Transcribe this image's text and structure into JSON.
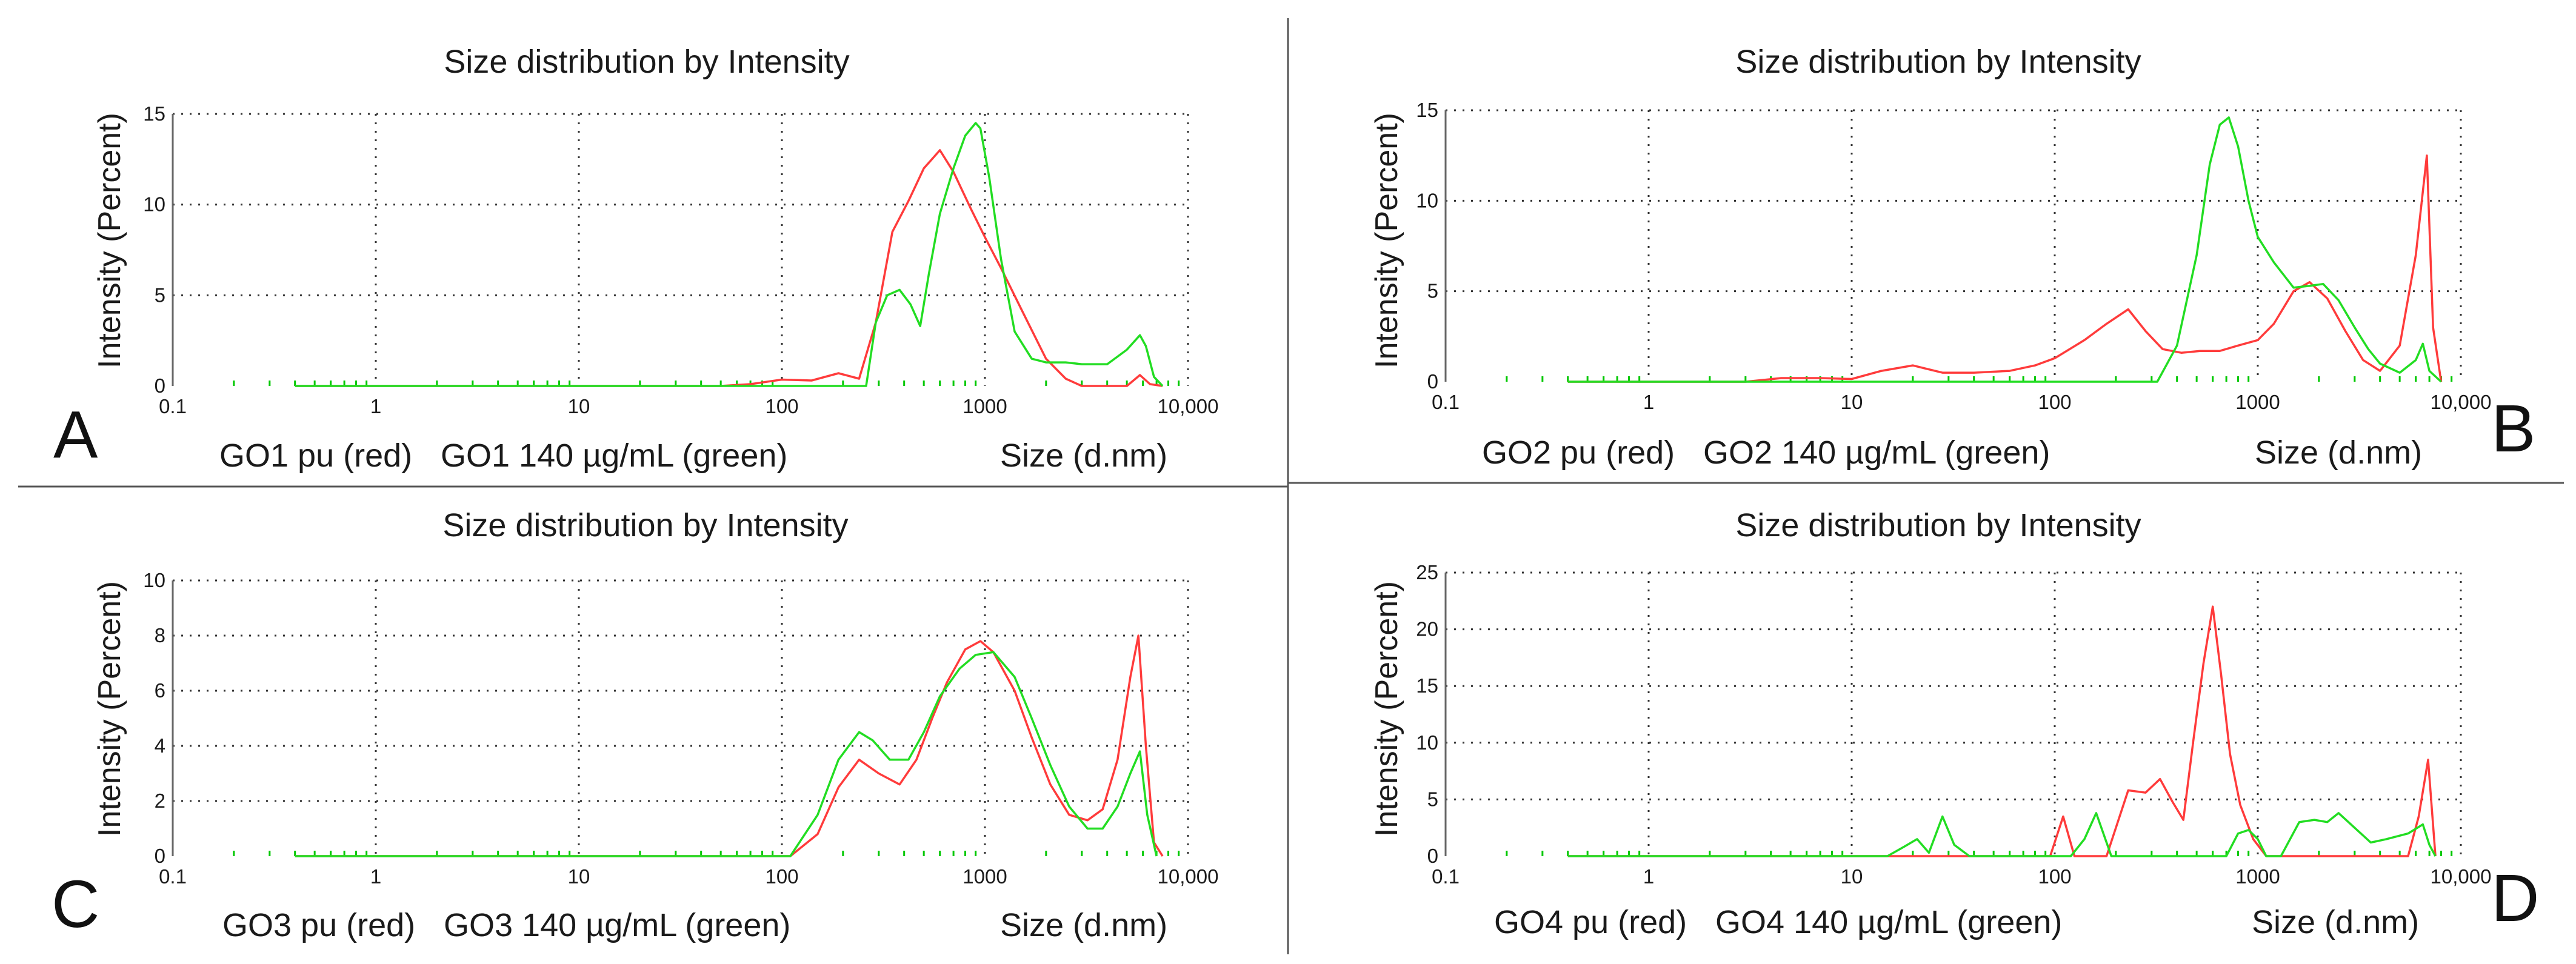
{
  "chart_data": [
    {
      "type": "line",
      "panel": "A",
      "title": "Size distribution by Intensity",
      "ylabel": "Intensity (Percent)",
      "xlabel": "Size (d.nm)",
      "xscale": "log",
      "xlim": [
        0.1,
        10000
      ],
      "ylim": [
        0,
        15
      ],
      "ytick_values": [
        0,
        5,
        10,
        15
      ],
      "yticks": [
        "0",
        "5",
        "10",
        "15"
      ],
      "xticks": [
        "0.1",
        "1",
        "10",
        "100",
        "1000",
        "10,000"
      ],
      "caption_red": "GO1 pu (red)",
      "caption_green": "GO1 140 µg/mL (green)",
      "series": [
        {
          "name": "GO1 pu (red)",
          "color": "#ff3b3b",
          "x": [
            0.4,
            50,
            70,
            100,
            140,
            190,
            240,
            290,
            350,
            420,
            500,
            600,
            700,
            850,
            1000,
            1200,
            1500,
            2000,
            2500,
            3000,
            4000,
            5000,
            5800,
            6500,
            7500
          ],
          "y": [
            0,
            0,
            0.1,
            0.35,
            0.3,
            0.7,
            0.4,
            3.5,
            8.5,
            10.2,
            12.0,
            13.0,
            11.8,
            9.8,
            8.2,
            6.5,
            4.3,
            1.5,
            0.4,
            0,
            0,
            0,
            0.6,
            0.1,
            0
          ]
        },
        {
          "name": "GO1 140 µg/mL (green)",
          "color": "#22dd22",
          "x": [
            0.4,
            260,
            290,
            330,
            380,
            430,
            480,
            530,
            600,
            700,
            800,
            900,
            950,
            1050,
            1200,
            1400,
            1700,
            2000,
            2500,
            3000,
            4000,
            5000,
            5800,
            6200,
            6800,
            7500
          ],
          "y": [
            0,
            0,
            3.5,
            5.0,
            5.3,
            4.5,
            3.3,
            6.2,
            9.5,
            12.0,
            13.8,
            14.5,
            14.2,
            11.5,
            7.0,
            3.0,
            1.5,
            1.3,
            1.3,
            1.2,
            1.2,
            2.0,
            2.8,
            2.2,
            0.5,
            0
          ]
        }
      ]
    },
    {
      "type": "line",
      "panel": "B",
      "title": "Size distribution by Intensity",
      "ylabel": "Intensity (Percent)",
      "xlabel": "Size (d.nm)",
      "xscale": "log",
      "xlim": [
        0.1,
        10000
      ],
      "ylim": [
        0,
        15
      ],
      "ytick_values": [
        0,
        5,
        10,
        15
      ],
      "yticks": [
        "0",
        "5",
        "10",
        "15"
      ],
      "xticks": [
        "0.1",
        "1",
        "10",
        "100",
        "1000",
        "10,000"
      ],
      "caption_red": "GO2 pu (red)",
      "caption_green": "GO2 140 µg/mL (green)",
      "series": [
        {
          "name": "GO2 pu (red)",
          "color": "#ff3b3b",
          "x": [
            0.4,
            3,
            4.5,
            7,
            10,
            14,
            20,
            28,
            40,
            60,
            80,
            100,
            140,
            180,
            230,
            280,
            340,
            420,
            520,
            650,
            800,
            1000,
            1200,
            1500,
            1800,
            2200,
            2700,
            3300,
            4000,
            5000,
            6000,
            6800,
            7300,
            8000
          ],
          "y": [
            0,
            0,
            0.2,
            0.2,
            0.15,
            0.6,
            0.9,
            0.5,
            0.5,
            0.6,
            0.9,
            1.3,
            2.3,
            3.2,
            4.0,
            2.8,
            1.8,
            1.6,
            1.7,
            1.7,
            2.0,
            2.3,
            3.2,
            5.0,
            5.5,
            4.6,
            2.8,
            1.2,
            0.6,
            2.0,
            7.0,
            12.5,
            3.0,
            0
          ]
        },
        {
          "name": "GO2 140 µg/mL (green)",
          "color": "#22dd22",
          "x": [
            0.4,
            320,
            400,
            500,
            580,
            650,
            720,
            800,
            900,
            1000,
            1200,
            1500,
            1800,
            2100,
            2500,
            3000,
            3500,
            4000,
            5000,
            6000,
            6500,
            7000,
            8000
          ],
          "y": [
            0,
            0,
            2.0,
            7.0,
            12.0,
            14.2,
            14.6,
            13.0,
            10.0,
            8.0,
            6.6,
            5.2,
            5.3,
            5.4,
            4.5,
            3.0,
            1.8,
            1.0,
            0.5,
            1.2,
            2.1,
            0.6,
            0
          ]
        }
      ]
    },
    {
      "type": "line",
      "panel": "C",
      "title": "Size distribution by Intensity",
      "ylabel": "Intensity (Percent)",
      "xlabel": "Size (d.nm)",
      "xscale": "log",
      "xlim": [
        0.1,
        10000
      ],
      "ylim": [
        0,
        10
      ],
      "ytick_values": [
        0,
        2,
        4,
        6,
        8,
        10
      ],
      "yticks": [
        "0",
        "2",
        "4",
        "6",
        "8",
        "10"
      ],
      "xticks": [
        "0.1",
        "1",
        "10",
        "100",
        "1000",
        "10,000"
      ],
      "caption_red": "GO3 pu (red)",
      "caption_green": "GO3 140 µg/mL (green)",
      "series": [
        {
          "name": "GO3 pu (red)",
          "color": "#ff3b3b",
          "x": [
            0.4,
            110,
            150,
            190,
            240,
            300,
            380,
            460,
            550,
            650,
            800,
            950,
            1100,
            1400,
            1700,
            2100,
            2600,
            3200,
            3800,
            4500,
            5200,
            5700,
            6200,
            6800,
            7500
          ],
          "y": [
            0,
            0,
            0.8,
            2.5,
            3.5,
            3.0,
            2.6,
            3.5,
            5.0,
            6.3,
            7.5,
            7.8,
            7.4,
            6.0,
            4.3,
            2.6,
            1.5,
            1.3,
            1.7,
            3.5,
            6.5,
            8.0,
            4.0,
            0.5,
            0
          ]
        },
        {
          "name": "GO3 140 µg/mL (green)",
          "color": "#22dd22",
          "x": [
            0.4,
            110,
            150,
            190,
            240,
            280,
            340,
            420,
            500,
            600,
            750,
            900,
            1100,
            1400,
            1700,
            2100,
            2600,
            3200,
            3800,
            4500,
            5200,
            5800,
            6300,
            7000
          ],
          "y": [
            0,
            0,
            1.5,
            3.5,
            4.5,
            4.2,
            3.5,
            3.5,
            4.5,
            5.8,
            6.8,
            7.3,
            7.4,
            6.5,
            5.0,
            3.3,
            1.8,
            1.0,
            1.0,
            1.8,
            3.0,
            3.8,
            1.5,
            0
          ]
        }
      ]
    },
    {
      "type": "line",
      "panel": "D",
      "title": "Size distribution by Intensity",
      "ylabel": "Intensity (Percent)",
      "xlabel": "Size (d.nm)",
      "xscale": "log",
      "xlim": [
        0.1,
        10000
      ],
      "ylim": [
        0,
        25
      ],
      "ytick_values": [
        0,
        5,
        10,
        15,
        20,
        25
      ],
      "yticks": [
        "0",
        "5",
        "10",
        "15",
        "20",
        "25"
      ],
      "xticks": [
        "0.1",
        "1",
        "10",
        "100",
        "1000",
        "10,000"
      ],
      "caption_red": "GO4 pu (red)",
      "caption_green": "GO4 140 µg/mL (green)",
      "series": [
        {
          "name": "GO4 pu (red)",
          "color": "#ff3b3b",
          "x": [
            0.4,
            95,
            110,
            125,
            180,
            230,
            280,
            330,
            380,
            430,
            480,
            540,
            600,
            660,
            730,
            820,
            950,
            1100,
            1300,
            5500,
            6200,
            6900,
            7500
          ],
          "y": [
            0,
            0,
            3.5,
            0,
            0,
            5.8,
            5.6,
            6.8,
            4.8,
            3.2,
            10.0,
            17.0,
            22.0,
            16.0,
            9.0,
            4.5,
            1.5,
            0,
            0,
            0,
            3.5,
            8.5,
            0
          ]
        },
        {
          "name": "GO4 140 µg/mL (green)",
          "color": "#22dd22",
          "x": [
            0.4,
            15,
            18,
            21,
            24,
            28,
            32,
            38,
            120,
            140,
            160,
            190,
            700,
            800,
            900,
            1000,
            1100,
            1300,
            1600,
            1900,
            2200,
            2500,
            3000,
            3600,
            4300,
            5500,
            6500,
            7000,
            7500
          ],
          "y": [
            0,
            0,
            0.8,
            1.5,
            0.3,
            3.5,
            1.0,
            0,
            0,
            1.5,
            3.8,
            0,
            0,
            2.0,
            2.3,
            1.5,
            0,
            0,
            3.0,
            3.2,
            3.0,
            3.8,
            2.5,
            1.2,
            1.5,
            2.0,
            2.8,
            1.0,
            0
          ]
        }
      ]
    }
  ]
}
